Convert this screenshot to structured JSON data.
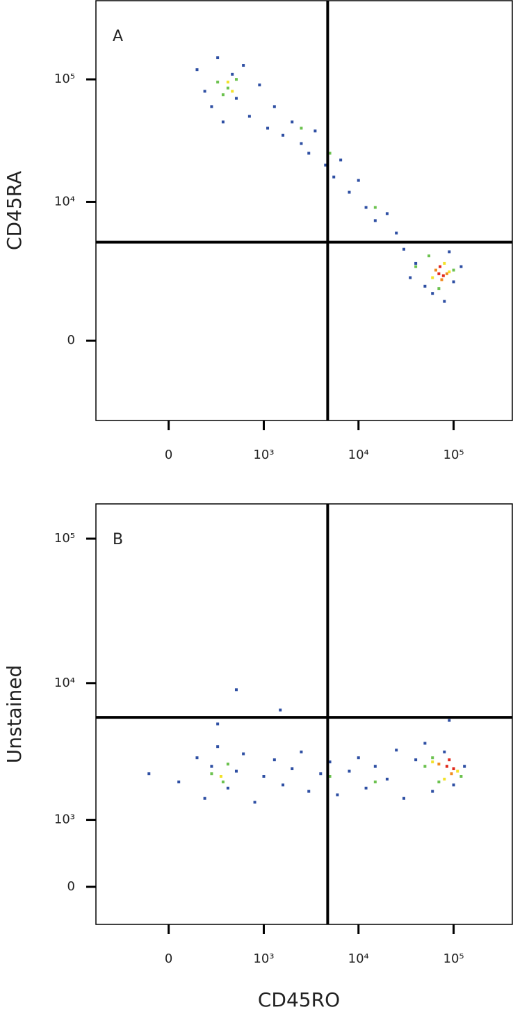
{
  "chart_data": [
    {
      "type": "scatter",
      "panel_label": "A",
      "y_label": "CD45RA",
      "xscale": "biexponential",
      "yscale": "biexponential",
      "xlim": [
        -570,
        414000
      ],
      "ylim": [
        -3160,
        437000
      ],
      "xticks": [
        0,
        {
          "value": 1000,
          "label": "10³"
        },
        {
          "value": 10000,
          "label": "10⁴"
        },
        {
          "value": 100000,
          "label": "10⁵"
        }
      ],
      "yticks": [
        0,
        {
          "value": 10000,
          "label": "10⁴"
        },
        {
          "value": 100000,
          "label": "10⁵"
        }
      ],
      "gate_x": 4740,
      "gate_y": 4600,
      "series": [
        {
          "color": "#2e4fa3",
          "x": [
            150,
            200,
            250,
            300,
            350,
            450,
            500,
            600,
            700,
            900,
            1100,
            1300,
            1600,
            2000,
            2500,
            3000,
            3500,
            4500,
            5500,
            6500,
            8000,
            10000,
            12000,
            15000,
            20000,
            25000,
            30000,
            40000,
            50000,
            60000,
            80000,
            100000,
            120000,
            90000,
            35000
          ],
          "y": [
            120000,
            80000,
            60000,
            150000,
            45000,
            110000,
            70000,
            130000,
            50000,
            90000,
            40000,
            60000,
            35000,
            45000,
            30000,
            25000,
            38000,
            20000,
            16000,
            22000,
            12000,
            15000,
            9000,
            7000,
            8000,
            5500,
            4000,
            3000,
            1800,
            1500,
            1200,
            2000,
            2800,
            3800,
            2200
          ]
        },
        {
          "color": "#6cc24f",
          "x": [
            300,
            400,
            500,
            350,
            2500,
            5000,
            15000,
            40000,
            55000,
            100000,
            70000
          ],
          "y": [
            95000,
            85000,
            100000,
            75000,
            40000,
            25000,
            9000,
            2800,
            3500,
            2600,
            1700
          ]
        },
        {
          "color": "#f2e22a",
          "x": [
            400,
            450,
            60000,
            80000,
            90000
          ],
          "y": [
            95000,
            80000,
            2200,
            3000,
            2500
          ]
        },
        {
          "color": "#f08a20",
          "x": [
            65000,
            75000,
            85000
          ],
          "y": [
            2600,
            2100,
            2400
          ]
        },
        {
          "color": "#e02a1c",
          "x": [
            70000,
            78000,
            72000
          ],
          "y": [
            2400,
            2300,
            2800
          ]
        }
      ]
    },
    {
      "type": "scatter",
      "panel_label": "B",
      "y_label": "Unstained",
      "x_label": "CD45RO",
      "xscale": "biexponential",
      "yscale": "biexponential",
      "xlim": [
        -570,
        414000
      ],
      "ylim": [
        -495,
        174000
      ],
      "xticks": [
        0,
        {
          "value": 1000,
          "label": "10³"
        },
        {
          "value": 10000,
          "label": "10⁴"
        },
        {
          "value": 100000,
          "label": "10⁵"
        }
      ],
      "yticks": [
        0,
        {
          "value": 1000,
          "label": "10³"
        },
        {
          "value": 10000,
          "label": "10⁴"
        },
        {
          "value": 100000,
          "label": "10⁵"
        }
      ],
      "gate_x": 4740,
      "gate_y": 5780,
      "series": [
        {
          "color": "#2e4fa3",
          "x": [
            -100,
            50,
            150,
            200,
            250,
            300,
            400,
            500,
            600,
            800,
            1000,
            1300,
            1600,
            2000,
            2500,
            3000,
            4000,
            5000,
            6000,
            8000,
            10000,
            12000,
            15000,
            20000,
            25000,
            30000,
            40000,
            50000,
            60000,
            80000,
            100000,
            130000,
            1500,
            500,
            90000,
            300
          ],
          "y": [
            2300,
            2000,
            3000,
            1500,
            2600,
            3600,
            1800,
            2400,
            3200,
            1400,
            2200,
            2900,
            1900,
            2500,
            3300,
            1700,
            2300,
            2800,
            1600,
            2400,
            3000,
            1800,
            2600,
            2100,
            3400,
            1500,
            2900,
            3800,
            1700,
            3300,
            1900,
            2600,
            6500,
            9000,
            5500,
            5200
          ]
        },
        {
          "color": "#6cc24f",
          "x": [
            250,
            350,
            400,
            5000,
            15000,
            50000,
            60000,
            120000,
            70000
          ],
          "y": [
            2300,
            2000,
            2700,
            2200,
            2000,
            2600,
            3000,
            2200,
            2000
          ]
        },
        {
          "color": "#f2e22a",
          "x": [
            330,
            60000,
            110000,
            80000
          ],
          "y": [
            2200,
            2800,
            2400,
            2100
          ]
        },
        {
          "color": "#f08a20",
          "x": [
            70000,
            95000
          ],
          "y": [
            2700,
            2300
          ]
        },
        {
          "color": "#e02a1c",
          "x": [
            85000,
            100000,
            90000
          ],
          "y": [
            2600,
            2500,
            2900
          ]
        }
      ]
    }
  ]
}
